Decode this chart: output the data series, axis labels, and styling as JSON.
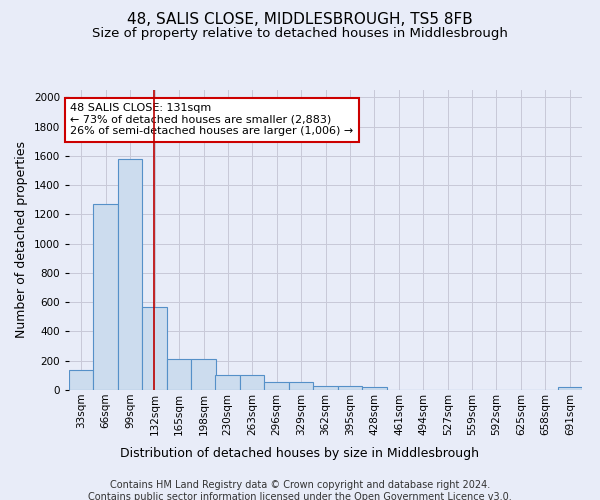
{
  "title": "48, SALIS CLOSE, MIDDLESBROUGH, TS5 8FB",
  "subtitle": "Size of property relative to detached houses in Middlesbrough",
  "xlabel": "Distribution of detached houses by size in Middlesbrough",
  "ylabel": "Number of detached properties",
  "bins": [
    33,
    66,
    99,
    132,
    165,
    198,
    230,
    263,
    296,
    329,
    362,
    395,
    428,
    461,
    494,
    527,
    559,
    592,
    625,
    658,
    691
  ],
  "bin_width": 33,
  "heights": [
    140,
    1270,
    1580,
    570,
    215,
    215,
    105,
    105,
    55,
    55,
    30,
    30,
    20,
    0,
    0,
    0,
    0,
    0,
    0,
    0,
    20
  ],
  "bar_color": "#ccdcee",
  "bar_edge_color": "#5590c8",
  "bar_edge_width": 0.8,
  "grid_color": "#c8c8d8",
  "bg_color": "#e8ecf8",
  "plot_bg_color": "#e8ecf8",
  "property_size": 131,
  "red_line_color": "#bb0000",
  "annotation_text": "48 SALIS CLOSE: 131sqm\n← 73% of detached houses are smaller (2,883)\n26% of semi-detached houses are larger (1,006) →",
  "annotation_box_color": "#ffffff",
  "annotation_box_edge": "#cc0000",
  "ylim": [
    0,
    2050
  ],
  "yticks": [
    0,
    200,
    400,
    600,
    800,
    1000,
    1200,
    1400,
    1600,
    1800,
    2000
  ],
  "footer_line1": "Contains HM Land Registry data © Crown copyright and database right 2024.",
  "footer_line2": "Contains public sector information licensed under the Open Government Licence v3.0.",
  "title_fontsize": 11,
  "subtitle_fontsize": 9.5,
  "axis_label_fontsize": 9,
  "tick_fontsize": 7.5,
  "annotation_fontsize": 8,
  "footer_fontsize": 7
}
